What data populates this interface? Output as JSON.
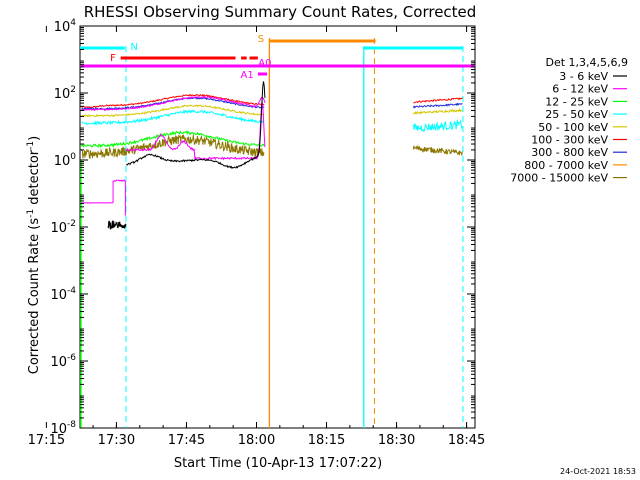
{
  "chart_data": {
    "type": "line",
    "title": "RHESSI Observing Summary Count Rates, Corrected",
    "xlabel": "Start Time (10-Apr-13 17:07:22)",
    "ylabel": "Corrected Count Rate (s",
    "ylabel_sup": "-1",
    "ylabel_mid": " detector",
    "ylabel_sup2": "-1",
    "ylabel_end": ")",
    "yscale": "log",
    "xlim_minutes": [
      17.37,
      18.78
    ],
    "ylim": [
      1e-08,
      10000
    ],
    "x_ticks": [
      {
        "label": "17:15",
        "t": 17.25
      },
      {
        "label": "17:30",
        "t": 17.5
      },
      {
        "label": "17:45",
        "t": 17.75
      },
      {
        "label": "18:00",
        "t": 18.0
      },
      {
        "label": "18:15",
        "t": 18.25
      },
      {
        "label": "18:30",
        "t": 18.5
      },
      {
        "label": "18:45",
        "t": 18.75
      }
    ],
    "y_ticks": [
      {
        "base": "10",
        "exp": "-8",
        "v": -8
      },
      {
        "base": "10",
        "exp": "-6",
        "v": -6
      },
      {
        "base": "10",
        "exp": "-4",
        "v": -4
      },
      {
        "base": "10",
        "exp": "-2",
        "v": -2
      },
      {
        "base": "10",
        "exp": "0",
        "v": 0
      },
      {
        "base": "10",
        "exp": "2",
        "v": 2
      },
      {
        "base": "10",
        "exp": "4",
        "v": 4
      }
    ],
    "legend_title": "Det 1,3,4,5,6,9",
    "legend_placement": "top-right",
    "series": [
      {
        "name": "3 - 6 keV",
        "color": "#000000"
      },
      {
        "name": "6 - 12 keV",
        "color": "#ff00ff"
      },
      {
        "name": "12 - 25 keV",
        "color": "#00ff00"
      },
      {
        "name": "25 - 50 keV",
        "color": "#00ffff"
      },
      {
        "name": "50 - 100 keV",
        "color": "#d4c900"
      },
      {
        "name": "100 - 300 keV",
        "color": "#ff0000"
      },
      {
        "name": "300 - 800 keV",
        "color": "#1c2bd6"
      },
      {
        "name": "800 - 7000 keV",
        "color": "#ff8800"
      },
      {
        "name": "7000 - 15000 keV",
        "color": "#8b7700"
      }
    ],
    "flag_bars": [
      {
        "label": "N",
        "color": "#00ffff"
      },
      {
        "label": "F",
        "color": "#ff0000"
      },
      {
        "label": "S",
        "color": "#ff8800"
      },
      {
        "label": "A0",
        "color": "#ff00ff"
      },
      {
        "label": "A1",
        "color": "#ff00ff"
      }
    ],
    "footer_date": "24-Oct-2021 18:53"
  }
}
